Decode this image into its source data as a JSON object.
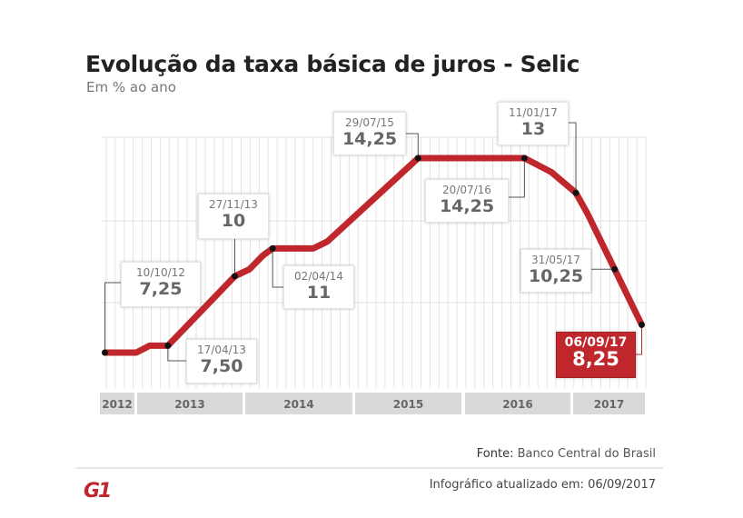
{
  "header": {
    "title": "Evolução da taxa básica de juros - Selic",
    "subtitle": "Em % ao ano"
  },
  "chart_data": {
    "type": "line",
    "title": "Evolução da taxa básica de juros - Selic",
    "ylabel": "Em % ao ano",
    "xlabel": "",
    "ylim": [
      7.25,
      14.25
    ],
    "grid": true,
    "line_color": "#c0272d",
    "x_tick_labels": [
      "2012",
      "2013",
      "2014",
      "2015",
      "2016",
      "2017"
    ],
    "series": [
      {
        "points": [
          {
            "date": "2012-10-10",
            "value": 7.25
          },
          {
            "date": "2013-01-01",
            "value": 7.25
          },
          {
            "date": "2013-02-15",
            "value": 7.5
          },
          {
            "date": "2013-04-17",
            "value": 7.5
          },
          {
            "date": "2013-11-27",
            "value": 10
          },
          {
            "date": "2014-01-15",
            "value": 10.25
          },
          {
            "date": "2014-03-01",
            "value": 10.75
          },
          {
            "date": "2014-04-02",
            "value": 11
          },
          {
            "date": "2014-08-15",
            "value": 11
          },
          {
            "date": "2014-10-01",
            "value": 11.25
          },
          {
            "date": "2015-07-29",
            "value": 14.25
          },
          {
            "date": "2016-07-20",
            "value": 14.25
          },
          {
            "date": "2016-10-19",
            "value": 13.75
          },
          {
            "date": "2017-01-11",
            "value": 13
          },
          {
            "date": "2017-02-22",
            "value": 12.25
          },
          {
            "date": "2017-05-31",
            "value": 10.25
          },
          {
            "date": "2017-09-06",
            "value": 8.25
          }
        ]
      }
    ],
    "annotations": [
      {
        "date": "2012-10-10",
        "date_label": "10/10/12",
        "value": 7.25,
        "value_label": "7,25"
      },
      {
        "date": "2013-04-17",
        "date_label": "17/04/13",
        "value": 7.5,
        "value_label": "7,50"
      },
      {
        "date": "2013-11-27",
        "date_label": "27/11/13",
        "value": 10,
        "value_label": "10"
      },
      {
        "date": "2014-04-02",
        "date_label": "02/04/14",
        "value": 11,
        "value_label": "11"
      },
      {
        "date": "2015-07-29",
        "date_label": "29/07/15",
        "value": 14.25,
        "value_label": "14,25"
      },
      {
        "date": "2016-07-20",
        "date_label": "20/07/16",
        "value": 14.25,
        "value_label": "14,25"
      },
      {
        "date": "2017-01-11",
        "date_label": "11/01/17",
        "value": 13,
        "value_label": "13"
      },
      {
        "date": "2017-05-31",
        "date_label": "31/05/17",
        "value": 10.25,
        "value_label": "10,25"
      },
      {
        "date": "2017-09-06",
        "date_label": "06/09/17",
        "value": 8.25,
        "value_label": "8,25",
        "highlight": true
      }
    ]
  },
  "footer": {
    "source_label": "Fonte:",
    "source": "Banco Central do Brasil",
    "updated": "Infográfico atualizado em: 06/09/2017",
    "logo": "G1"
  }
}
